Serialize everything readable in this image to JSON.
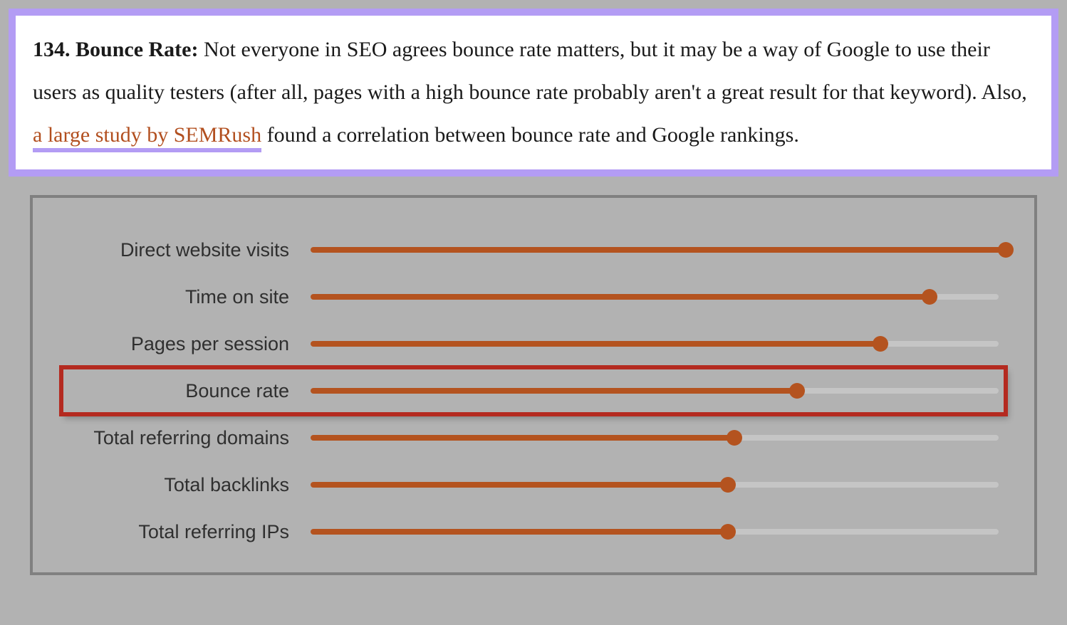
{
  "callout": {
    "lead_bold": "134. Bounce Rate:",
    "text_before_link": " Not everyone in SEO agrees bounce rate matters, but it may be a way of Google to use their users as quality testers (after all, pages with a high bounce rate probably aren't a great result for that keyword). Also, ",
    "link_text": "a large study by SEMRush",
    "text_after_link": " found a correlation between bounce rate and Google rankings.",
    "border_color": "#b39cf4",
    "link_color": "#b24f1f",
    "link_underline_color": "#b39cf4",
    "text_color": "#1a1a1a",
    "background_color": "#ffffff",
    "font_size_pt": 22
  },
  "chart": {
    "type": "horizontal_slider_bar",
    "frame_border_color": "#808080",
    "background_color": "#b2b2b2",
    "track_color": "#c5c5c5",
    "fill_color": "#b4531f",
    "knob_color": "#b4531f",
    "highlight_border_color": "#b42a20",
    "label_font_family": "Arial",
    "label_font_size_pt": 20,
    "label_color": "#2f2f2f",
    "x_min": 0,
    "x_max": 100,
    "rows": [
      {
        "label": "Direct website visits",
        "value": 100,
        "highlight": false
      },
      {
        "label": "Time on site",
        "value": 89,
        "highlight": false
      },
      {
        "label": "Pages per session",
        "value": 82,
        "highlight": false
      },
      {
        "label": "Bounce rate",
        "value": 70,
        "highlight": true
      },
      {
        "label": "Total referring domains",
        "value": 61,
        "highlight": false
      },
      {
        "label": "Total backlinks",
        "value": 60,
        "highlight": false
      },
      {
        "label": "Total referring IPs",
        "value": 60,
        "highlight": false
      }
    ]
  }
}
